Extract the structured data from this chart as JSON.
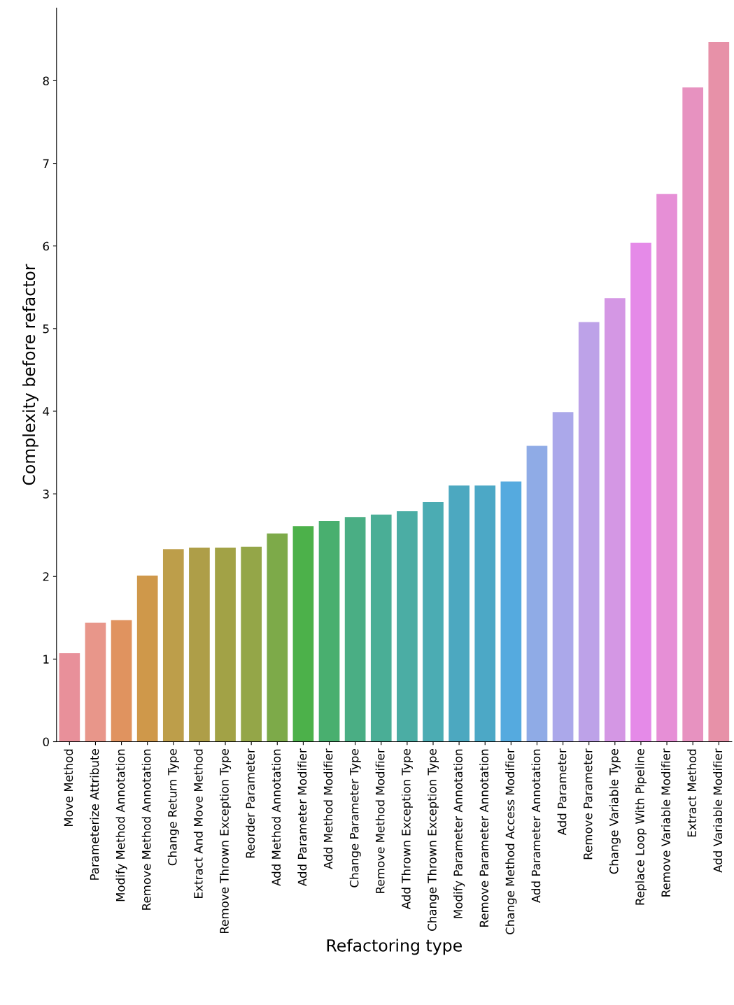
{
  "chart_data": {
    "type": "bar",
    "xlabel": "Refactoring type",
    "ylabel": "Complexity before refactor",
    "categories": [
      "Move Method",
      "Parameterize Attribute",
      "Modify Method Annotation",
      "Remove Method Annotation",
      "Change Return Type",
      "Extract And Move Method",
      "Remove Thrown Exception Type",
      "Reorder Parameter",
      "Add Method Annotation",
      "Add Parameter Modifier",
      "Add Method Modifier",
      "Change Parameter Type",
      "Remove Method Modifier",
      "Add Thrown Exception Type",
      "Change Thrown Exception Type",
      "Modify Parameter Annotation",
      "Remove Parameter Annotation",
      "Change Method Access Modifier",
      "Add Parameter Annotation",
      "Add Parameter",
      "Remove Parameter",
      "Change Variable Type",
      "Replace Loop With Pipeline",
      "Remove Variable Modifier",
      "Extract Method",
      "Add Variable Modifier"
    ],
    "values": [
      1.07,
      1.44,
      1.47,
      2.01,
      2.33,
      2.35,
      2.35,
      2.36,
      2.52,
      2.61,
      2.67,
      2.72,
      2.75,
      2.79,
      2.9,
      3.1,
      3.1,
      3.15,
      3.58,
      3.99,
      5.08,
      5.37,
      6.04,
      6.63,
      7.92,
      8.47
    ],
    "colors": [
      "#e8909a",
      "#e8968a",
      "#e0935f",
      "#cf984a",
      "#bd9e4a",
      "#ae9e48",
      "#a2a246",
      "#94a648",
      "#7daa49",
      "#4cb14a",
      "#49af6f",
      "#4aae84",
      "#4aae96",
      "#4badA4",
      "#4bacb3",
      "#4ca8c0",
      "#4ca8c6",
      "#55aadf",
      "#8fabe6",
      "#aba8ea",
      "#bda2e8",
      "#d497e4",
      "#e58ae8",
      "#e68fd6",
      "#e792c0",
      "#e791a8"
    ],
    "ylim": [
      0,
      8.88
    ],
    "yticks": [
      0,
      1,
      2,
      3,
      4,
      5,
      6,
      7,
      8
    ],
    "grid": false
  }
}
